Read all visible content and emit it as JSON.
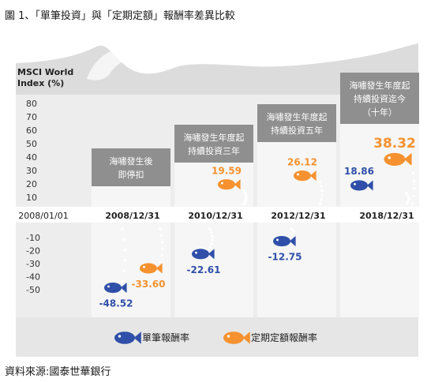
{
  "title": "圖 1、「單筆投資」與「定期定額」報酬率差異比較",
  "source": "資料來源:國泰世華銀行",
  "chart_data": {
    "type": "scatter",
    "ylabel_line1": "MSCI World",
    "ylabel_line2": "Index (%)",
    "yticks_pos": [
      80,
      70,
      60,
      50,
      40,
      30,
      20,
      10
    ],
    "yticks_neg": [
      -10,
      -20,
      -30,
      -40,
      -50
    ],
    "categories": [
      "2008/01/01",
      "2008/12/31",
      "2010/12/31",
      "2012/12/31",
      "2018/12/31"
    ],
    "panels": [
      {
        "lines": [
          "海嘯發生後",
          "即停扣"
        ]
      },
      {
        "lines": [
          "海嘯發生年度起",
          "持續投資三年"
        ]
      },
      {
        "lines": [
          "海嘯發生年度起",
          "持續投資五年"
        ]
      },
      {
        "lines": [
          "海嘯發生年度起",
          "持續投資迄今",
          "（十年）"
        ]
      }
    ],
    "series": [
      {
        "name": "單筆報酬率",
        "color": "#2f4fa8",
        "values": [
          -48.52,
          -22.61,
          -12.75,
          18.86
        ],
        "labels": [
          "-48.52",
          "-22.61",
          "-12.75",
          "18.86"
        ]
      },
      {
        "name": "定期定額報酬率",
        "color": "#f5922f",
        "values": [
          -33.6,
          19.59,
          26.12,
          38.32
        ],
        "labels": [
          "-33.60",
          "19.59",
          "26.12",
          "38.32"
        ]
      }
    ]
  }
}
